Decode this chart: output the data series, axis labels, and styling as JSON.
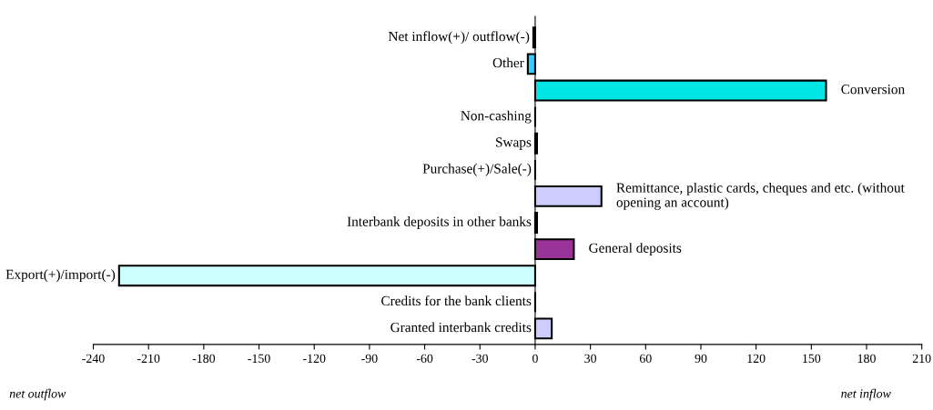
{
  "chart_data": {
    "type": "bar",
    "orientation": "horizontal",
    "categories": [
      "Net inflow(+)/ outflow(-)",
      "Other",
      "Conversion",
      "Non-cashing",
      "Swaps",
      "Purchase(+)/Sale(-)",
      "Remittance, plastic cards, cheques and etc. (without opening an account)",
      "Interbank deposits in other banks",
      "General deposits",
      "Export(+)/import(-)",
      "Credits for the bank clients",
      "Granted interbank credits"
    ],
    "values": [
      -1,
      -4,
      158,
      0,
      1,
      0,
      36,
      1,
      21,
      -226,
      0,
      9
    ],
    "colors": [
      "#000000",
      "#33ccff",
      "#00e5e5",
      "#000000",
      "#000000",
      "#000000",
      "#ccccff",
      "#000000",
      "#993399",
      "#ccffff",
      "#000000",
      "#ccccff"
    ],
    "xlim": [
      -240,
      210
    ],
    "xticks": [
      -240,
      -210,
      -180,
      -150,
      -120,
      -90,
      -60,
      -30,
      0,
      30,
      60,
      90,
      120,
      150,
      180,
      210
    ],
    "tick_labels": "x",
    "grid": false,
    "annotations": [
      "net outflow",
      "net inflow"
    ]
  }
}
